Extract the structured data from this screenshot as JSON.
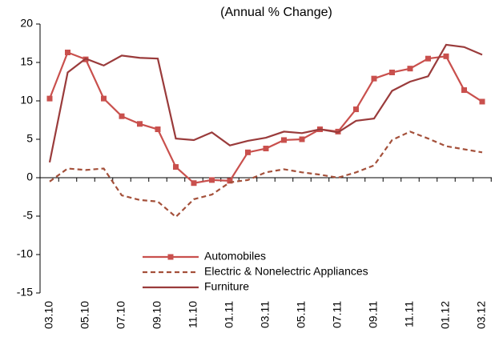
{
  "chart_data": {
    "type": "line",
    "title": "(Annual % Change)",
    "categories": [
      "03.10",
      null,
      "05.10",
      null,
      "07.10",
      null,
      "09.10",
      null,
      "11.10",
      null,
      "01.11",
      null,
      "03.11",
      null,
      "05.11",
      null,
      "07.11",
      null,
      "09.11",
      null,
      "11.11",
      null,
      "01.12",
      null,
      "03.12"
    ],
    "series": [
      {
        "name": "Automobiles",
        "color": "#c9504d",
        "marker": "square",
        "dash": false,
        "values": [
          10.3,
          16.3,
          15.4,
          10.3,
          8.0,
          7.0,
          6.3,
          1.4,
          -0.7,
          -0.3,
          -0.4,
          3.3,
          3.8,
          4.9,
          5.0,
          6.3,
          6.0,
          8.9,
          12.9,
          13.7,
          14.2,
          15.5,
          15.8,
          11.4,
          9.9
        ]
      },
      {
        "name": "Electric & Nonelectric Appliances",
        "color": "#a4503a",
        "marker": null,
        "dash": true,
        "values": [
          -0.5,
          1.2,
          1.0,
          1.2,
          -2.3,
          -2.9,
          -3.1,
          -5.1,
          -2.8,
          -2.2,
          -0.6,
          -0.3,
          0.7,
          1.1,
          0.7,
          0.4,
          0.0,
          0.7,
          1.6,
          4.9,
          6.0,
          5.1,
          4.1,
          3.7,
          3.3
        ]
      },
      {
        "name": "Furniture",
        "color": "#9a3b3b",
        "marker": null,
        "dash": false,
        "values": [
          2.0,
          13.7,
          15.5,
          14.6,
          15.9,
          15.6,
          15.5,
          5.1,
          4.9,
          5.9,
          4.2,
          4.8,
          5.2,
          6.0,
          5.8,
          6.3,
          5.9,
          7.4,
          7.7,
          11.3,
          12.5,
          13.2,
          17.3,
          17.0,
          16.0
        ]
      }
    ],
    "ylim": [
      -15,
      20
    ],
    "yticks": [
      -15,
      -10,
      -5,
      0,
      5,
      10,
      15,
      20
    ],
    "grid": false
  }
}
